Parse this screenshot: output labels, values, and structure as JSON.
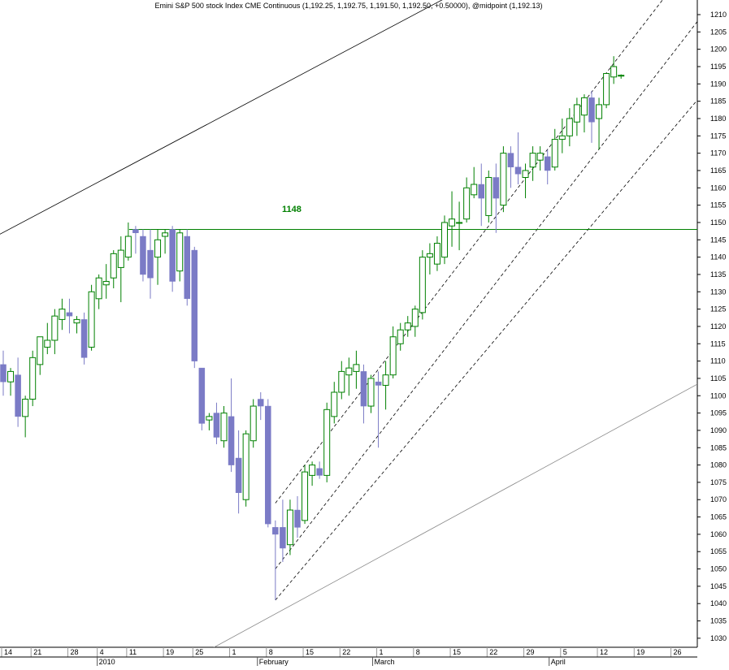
{
  "chart_data": {
    "type": "candlestick",
    "title": "Emini S&P 500 stock Index CME Continuous (1,192.25, 1,192.75, 1,191.50, 1,192.50, +0.50000), @midpoint (1,192.13)",
    "ylim": [
      1022,
      1215
    ],
    "y_ticks": [
      1030,
      1035,
      1040,
      1045,
      1050,
      1055,
      1060,
      1065,
      1070,
      1075,
      1080,
      1085,
      1090,
      1095,
      1100,
      1105,
      1110,
      1115,
      1120,
      1125,
      1130,
      1135,
      1140,
      1145,
      1150,
      1155,
      1160,
      1165,
      1170,
      1175,
      1180,
      1185,
      1190,
      1195,
      1200,
      1205,
      1210
    ],
    "x_day_labels": [
      "14",
      "21",
      "28",
      "4",
      "11",
      "19",
      "25",
      "1",
      "8",
      "15",
      "22",
      "1",
      "8",
      "15",
      "22",
      "29",
      "5",
      "12",
      "19",
      "26"
    ],
    "x_month_labels": [
      "2010",
      "February",
      "March",
      "April"
    ],
    "horizontal_level": {
      "value": 1148,
      "label": "1148"
    },
    "colors": {
      "up": "#008000",
      "down": "#7b7bc6",
      "level": "#008000",
      "grid": "#bbbbbb"
    },
    "grid": true,
    "candles": [
      {
        "o": 1109,
        "h": 1113,
        "l": 1100,
        "c": 1104
      },
      {
        "o": 1104,
        "h": 1108,
        "l": 1100,
        "c": 1107
      },
      {
        "o": 1106,
        "h": 1111,
        "l": 1091,
        "c": 1094
      },
      {
        "o": 1094,
        "h": 1100,
        "l": 1088,
        "c": 1099
      },
      {
        "o": 1099,
        "h": 1113,
        "l": 1097,
        "c": 1111
      },
      {
        "o": 1109,
        "h": 1117,
        "l": 1106,
        "c": 1117
      },
      {
        "o": 1114,
        "h": 1121,
        "l": 1112,
        "c": 1116
      },
      {
        "o": 1116,
        "h": 1125,
        "l": 1112,
        "c": 1123
      },
      {
        "o": 1122,
        "h": 1128,
        "l": 1119,
        "c": 1125
      },
      {
        "o": 1124,
        "h": 1128,
        "l": 1118,
        "c": 1123
      },
      {
        "o": 1121,
        "h": 1123,
        "l": 1118,
        "c": 1122
      },
      {
        "o": 1122,
        "h": 1124,
        "l": 1109,
        "c": 1111
      },
      {
        "o": 1114,
        "h": 1132,
        "l": 1113,
        "c": 1130
      },
      {
        "o": 1128,
        "h": 1135,
        "l": 1125,
        "c": 1134
      },
      {
        "o": 1132,
        "h": 1138,
        "l": 1128,
        "c": 1133
      },
      {
        "o": 1134,
        "h": 1142,
        "l": 1131,
        "c": 1141
      },
      {
        "o": 1137,
        "h": 1146,
        "l": 1127,
        "c": 1142
      },
      {
        "o": 1140,
        "h": 1150,
        "l": 1139,
        "c": 1146
      },
      {
        "o": 1148,
        "h": 1149,
        "l": 1141,
        "c": 1147
      },
      {
        "o": 1146,
        "h": 1148,
        "l": 1133,
        "c": 1135
      },
      {
        "o": 1142,
        "h": 1148,
        "l": 1128,
        "c": 1134
      },
      {
        "o": 1140,
        "h": 1148,
        "l": 1132,
        "c": 1145
      },
      {
        "o": 1146,
        "h": 1148,
        "l": 1141,
        "c": 1147
      },
      {
        "o": 1148,
        "h": 1149,
        "l": 1130,
        "c": 1133
      },
      {
        "o": 1136,
        "h": 1148,
        "l": 1133,
        "c": 1147
      },
      {
        "o": 1146,
        "h": 1148,
        "l": 1126,
        "c": 1128
      },
      {
        "o": 1142,
        "h": 1143,
        "l": 1108,
        "c": 1110
      },
      {
        "o": 1108,
        "h": 1108,
        "l": 1090,
        "c": 1092
      },
      {
        "o": 1093,
        "h": 1095,
        "l": 1090,
        "c": 1094
      },
      {
        "o": 1095,
        "h": 1098,
        "l": 1086,
        "c": 1088
      },
      {
        "o": 1087,
        "h": 1097,
        "l": 1085,
        "c": 1095
      },
      {
        "o": 1094,
        "h": 1105,
        "l": 1078,
        "c": 1080
      },
      {
        "o": 1082,
        "h": 1090,
        "l": 1066,
        "c": 1072
      },
      {
        "o": 1070,
        "h": 1090,
        "l": 1068,
        "c": 1089
      },
      {
        "o": 1087,
        "h": 1099,
        "l": 1085,
        "c": 1097
      },
      {
        "o": 1099,
        "h": 1101,
        "l": 1093,
        "c": 1097
      },
      {
        "o": 1097,
        "h": 1099,
        "l": 1062,
        "c": 1063
      },
      {
        "o": 1062,
        "h": 1064,
        "l": 1041,
        "c": 1060
      },
      {
        "o": 1062,
        "h": 1070,
        "l": 1052,
        "c": 1056
      },
      {
        "o": 1057,
        "h": 1070,
        "l": 1054,
        "c": 1067
      },
      {
        "o": 1067,
        "h": 1071,
        "l": 1059,
        "c": 1062
      },
      {
        "o": 1064,
        "h": 1080,
        "l": 1063,
        "c": 1078
      },
      {
        "o": 1077,
        "h": 1081,
        "l": 1074,
        "c": 1080
      },
      {
        "o": 1079,
        "h": 1081,
        "l": 1076,
        "c": 1077
      },
      {
        "o": 1077,
        "h": 1098,
        "l": 1075,
        "c": 1096
      },
      {
        "o": 1094,
        "h": 1104,
        "l": 1092,
        "c": 1101
      },
      {
        "o": 1101,
        "h": 1110,
        "l": 1099,
        "c": 1107
      },
      {
        "o": 1106,
        "h": 1111,
        "l": 1100,
        "c": 1108
      },
      {
        "o": 1107,
        "h": 1113,
        "l": 1102,
        "c": 1109
      },
      {
        "o": 1107,
        "h": 1109,
        "l": 1092,
        "c": 1097
      },
      {
        "o": 1097,
        "h": 1106,
        "l": 1095,
        "c": 1105
      },
      {
        "o": 1104,
        "h": 1107,
        "l": 1085,
        "c": 1103
      },
      {
        "o": 1103,
        "h": 1110,
        "l": 1096,
        "c": 1106
      },
      {
        "o": 1106,
        "h": 1120,
        "l": 1105,
        "c": 1117
      },
      {
        "o": 1115,
        "h": 1121,
        "l": 1113,
        "c": 1119
      },
      {
        "o": 1119,
        "h": 1123,
        "l": 1117,
        "c": 1121
      },
      {
        "o": 1120,
        "h": 1126,
        "l": 1117,
        "c": 1125
      },
      {
        "o": 1124,
        "h": 1142,
        "l": 1122,
        "c": 1140
      },
      {
        "o": 1140,
        "h": 1144,
        "l": 1135,
        "c": 1141
      },
      {
        "o": 1138,
        "h": 1146,
        "l": 1136,
        "c": 1144
      },
      {
        "o": 1140,
        "h": 1152,
        "l": 1138,
        "c": 1150
      },
      {
        "o": 1149,
        "h": 1159,
        "l": 1143,
        "c": 1151
      },
      {
        "o": 1150,
        "h": 1156,
        "l": 1142,
        "c": 1150
      },
      {
        "o": 1151,
        "h": 1163,
        "l": 1150,
        "c": 1160
      },
      {
        "o": 1158,
        "h": 1166,
        "l": 1157,
        "c": 1161
      },
      {
        "o": 1161,
        "h": 1167,
        "l": 1149,
        "c": 1157
      },
      {
        "o": 1152,
        "h": 1165,
        "l": 1150,
        "c": 1163
      },
      {
        "o": 1163,
        "h": 1167,
        "l": 1147,
        "c": 1157
      },
      {
        "o": 1155,
        "h": 1172,
        "l": 1153,
        "c": 1170
      },
      {
        "o": 1170,
        "h": 1172,
        "l": 1160,
        "c": 1166
      },
      {
        "o": 1166,
        "h": 1176,
        "l": 1161,
        "c": 1164
      },
      {
        "o": 1163,
        "h": 1167,
        "l": 1157,
        "c": 1165
      },
      {
        "o": 1166,
        "h": 1172,
        "l": 1162,
        "c": 1170
      },
      {
        "o": 1168,
        "h": 1172,
        "l": 1165,
        "c": 1170
      },
      {
        "o": 1169,
        "h": 1171,
        "l": 1161,
        "c": 1165
      },
      {
        "o": 1166,
        "h": 1177,
        "l": 1165,
        "c": 1174
      },
      {
        "o": 1174,
        "h": 1180,
        "l": 1170,
        "c": 1175
      },
      {
        "o": 1175,
        "h": 1183,
        "l": 1172,
        "c": 1180
      },
      {
        "o": 1179,
        "h": 1186,
        "l": 1175,
        "c": 1184
      },
      {
        "o": 1181,
        "h": 1187,
        "l": 1176,
        "c": 1186
      },
      {
        "o": 1186,
        "h": 1188,
        "l": 1173,
        "c": 1179
      },
      {
        "o": 1180,
        "h": 1186,
        "l": 1171,
        "c": 1184
      },
      {
        "o": 1184,
        "h": 1193,
        "l": 1183,
        "c": 1193
      },
      {
        "o": 1192,
        "h": 1198,
        "l": 1190,
        "c": 1195
      },
      {
        "o": 1192.25,
        "h": 1192.75,
        "l": 1191.5,
        "c": 1192.5
      }
    ],
    "trendlines": [
      {
        "style": "solid-dark",
        "x1": -1,
        "y1": 1146,
        "x2": 63,
        "y2": 1218
      },
      {
        "style": "solid-light",
        "x1": 24,
        "y1": 1022,
        "x2": 101,
        "y2": 1111
      },
      {
        "style": "dashed",
        "x1": 37,
        "y1": 1069,
        "x2": 91,
        "y2": 1218
      },
      {
        "style": "dashed",
        "x1": 37,
        "y1": 1050,
        "x2": 98,
        "y2": 1218
      },
      {
        "style": "dashed",
        "x1": 37,
        "y1": 1041,
        "x2": 99,
        "y2": 1197
      }
    ]
  }
}
